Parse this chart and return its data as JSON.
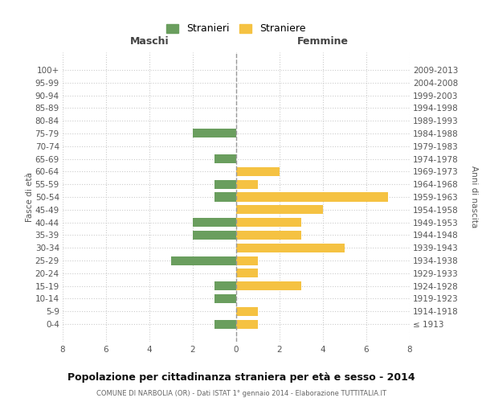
{
  "age_groups": [
    "100+",
    "95-99",
    "90-94",
    "85-89",
    "80-84",
    "75-79",
    "70-74",
    "65-69",
    "60-64",
    "55-59",
    "50-54",
    "45-49",
    "40-44",
    "35-39",
    "30-34",
    "25-29",
    "20-24",
    "15-19",
    "10-14",
    "5-9",
    "0-4"
  ],
  "birth_years": [
    "≤ 1913",
    "1914-1918",
    "1919-1923",
    "1924-1928",
    "1929-1933",
    "1934-1938",
    "1939-1943",
    "1944-1948",
    "1949-1953",
    "1954-1958",
    "1959-1963",
    "1964-1968",
    "1969-1973",
    "1974-1978",
    "1979-1983",
    "1984-1988",
    "1989-1993",
    "1994-1998",
    "1999-2003",
    "2004-2008",
    "2009-2013"
  ],
  "maschi": [
    0,
    0,
    0,
    0,
    0,
    2,
    0,
    1,
    0,
    1,
    1,
    0,
    2,
    2,
    0,
    3,
    0,
    1,
    1,
    0,
    1
  ],
  "femmine": [
    0,
    0,
    0,
    0,
    0,
    0,
    0,
    0,
    2,
    1,
    7,
    4,
    3,
    3,
    5,
    1,
    1,
    3,
    0,
    1,
    1
  ],
  "color_maschi": "#6a9e5e",
  "color_femmine": "#f5c242",
  "title": "Popolazione per cittadinanza straniera per età e sesso - 2014",
  "subtitle": "COMUNE DI NARBOLIA (OR) - Dati ISTAT 1° gennaio 2014 - Elaborazione TUTTITALIA.IT",
  "xlabel_left": "Maschi",
  "xlabel_right": "Femmine",
  "ylabel_left": "Fasce di età",
  "ylabel_right": "Anni di nascita",
  "legend_maschi": "Stranieri",
  "legend_femmine": "Straniere",
  "xlim": 8,
  "background_color": "#ffffff",
  "grid_color": "#cccccc"
}
